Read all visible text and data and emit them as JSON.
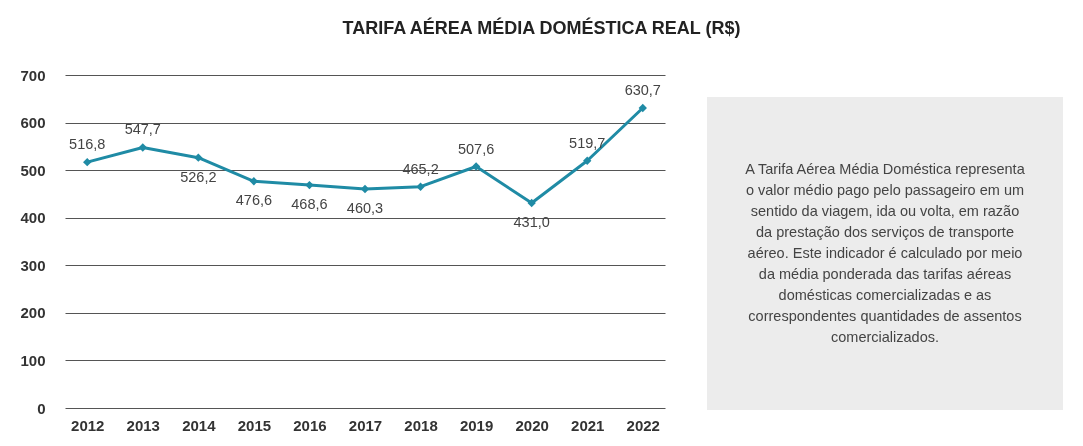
{
  "chart_data": {
    "type": "line",
    "title": "TARIFA AÉREA MÉDIA DOMÉSTICA REAL (R$)",
    "categories": [
      "2012",
      "2013",
      "2014",
      "2015",
      "2016",
      "2017",
      "2018",
      "2019",
      "2020",
      "2021",
      "2022"
    ],
    "series": [
      {
        "color": "#1f8ba5",
        "values": [
          516.8,
          547.7,
          526.2,
          476.6,
          468.6,
          460.3,
          465.2,
          507.6,
          431.0,
          519.7,
          630.7
        ],
        "value_labels": [
          "516,8",
          "547,7",
          "526,2",
          "476,6",
          "468,6",
          "460,3",
          "465,2",
          "507,6",
          "431,0",
          "519,7",
          "630,7"
        ]
      }
    ],
    "ylim": [
      0,
      700
    ],
    "yticks": [
      0,
      100,
      200,
      300,
      400,
      500,
      600,
      700
    ],
    "grid": "y",
    "marker": "diamond",
    "line_style": "solid",
    "annotations": [
      "A Tarifa Aérea Média Doméstica representa o valor médio pago pelo passageiro em um sentido da viagem, ida ou volta, em razão da prestação dos serviços de transporte aéreo. Este indicador é calculado por meio da média ponderada das tarifas aéreas domésticas comercializadas e as correspondentes quantidades de assentos comercializados."
    ]
  }
}
